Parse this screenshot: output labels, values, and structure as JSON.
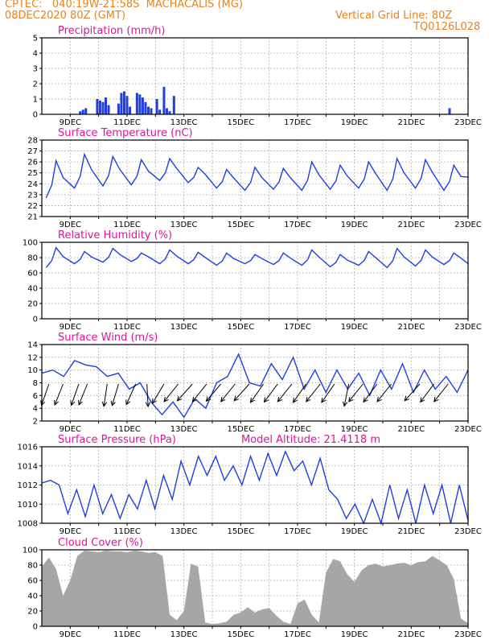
{
  "header": {
    "line1": "CPTEC:   040:19W-21:58S  MACHACALIS (MG)",
    "line2": "08DEC2020 80Z (GMT)",
    "grid_note": "Vertical Grid Line: 80Z",
    "code": "TQ0126L028"
  },
  "colors": {
    "line": "#1f3fe0",
    "title": "#e0139a",
    "header": "#e8821e",
    "cloud": "#a6a6a6",
    "arrow": "#000000"
  },
  "chart_data": [
    {
      "type": "bar",
      "title": "Precipitation (mm/h)",
      "x_ticks": [
        "9DEC",
        "11DEC",
        "13DEC",
        "15DEC",
        "17DEC",
        "19DEC",
        "21DEC",
        "23DEC"
      ],
      "x_range_days": [
        8.0,
        23.0
      ],
      "ylim": [
        0,
        5
      ],
      "y_ticks": [
        0,
        1,
        2,
        3,
        4,
        5
      ],
      "bars": [
        {
          "day": 9.35,
          "value": 0.2
        },
        {
          "day": 9.45,
          "value": 0.3
        },
        {
          "day": 9.55,
          "value": 0.4
        },
        {
          "day": 9.95,
          "value": 1.0
        },
        {
          "day": 10.05,
          "value": 0.9
        },
        {
          "day": 10.15,
          "value": 0.8
        },
        {
          "day": 10.25,
          "value": 1.1
        },
        {
          "day": 10.35,
          "value": 0.6
        },
        {
          "day": 10.7,
          "value": 0.7
        },
        {
          "day": 10.8,
          "value": 1.4
        },
        {
          "day": 10.9,
          "value": 1.5
        },
        {
          "day": 11.0,
          "value": 1.2
        },
        {
          "day": 11.1,
          "value": 0.5
        },
        {
          "day": 11.35,
          "value": 1.4
        },
        {
          "day": 11.45,
          "value": 1.3
        },
        {
          "day": 11.55,
          "value": 1.1
        },
        {
          "day": 11.65,
          "value": 0.8
        },
        {
          "day": 11.75,
          "value": 0.5
        },
        {
          "day": 11.85,
          "value": 0.4
        },
        {
          "day": 12.05,
          "value": 1.0
        },
        {
          "day": 12.15,
          "value": 0.3
        },
        {
          "day": 12.3,
          "value": 1.8
        },
        {
          "day": 12.4,
          "value": 0.4
        },
        {
          "day": 12.5,
          "value": 0.2
        },
        {
          "day": 12.65,
          "value": 1.2
        },
        {
          "day": 22.35,
          "value": 0.4
        }
      ]
    },
    {
      "type": "line",
      "title": "Surface Temperature (nC)",
      "x_ticks": [
        "9DEC",
        "11DEC",
        "13DEC",
        "15DEC",
        "17DEC",
        "19DEC",
        "21DEC",
        "23DEC"
      ],
      "ylim": [
        21,
        28
      ],
      "y_ticks": [
        21,
        22,
        23,
        24,
        25,
        26,
        27,
        28
      ],
      "minima": [
        22.7,
        23.6,
        23.8,
        23.9,
        24.3,
        24.1,
        23.6,
        23.4,
        23.5,
        23.4,
        23.5,
        23.6,
        23.4,
        23.6,
        23.4
      ],
      "maxima": [
        26.1,
        26.7,
        26.5,
        26.2,
        26.3,
        25.5,
        25.3,
        25.5,
        25.4,
        26.0,
        25.7,
        26.0,
        26.3,
        26.2,
        25.7
      ]
    },
    {
      "type": "line",
      "title": "Relative Humidity (%)",
      "x_ticks": [
        "9DEC",
        "11DEC",
        "13DEC",
        "15DEC",
        "17DEC",
        "19DEC",
        "21DEC",
        "23DEC"
      ],
      "ylim": [
        0,
        100
      ],
      "y_ticks": [
        0,
        20,
        40,
        60,
        80,
        100
      ],
      "minima": [
        67,
        72,
        74,
        75,
        72,
        72,
        70,
        72,
        71,
        70,
        68,
        70,
        67,
        69,
        71
      ],
      "maxima": [
        93,
        88,
        92,
        86,
        90,
        87,
        86,
        84,
        86,
        90,
        84,
        88,
        92,
        90,
        86
      ]
    },
    {
      "type": "line",
      "title": "Surface Wind (m/s)",
      "x_ticks": [
        "9DEC",
        "11DEC",
        "13DEC",
        "15DEC",
        "17DEC",
        "19DEC",
        "21DEC",
        "23DEC"
      ],
      "ylim": [
        2,
        14
      ],
      "y_ticks": [
        2,
        4,
        6,
        8,
        10,
        12,
        14
      ],
      "speed": [
        9.5,
        10,
        9,
        11.5,
        10.8,
        10.5,
        9,
        9.5,
        7,
        8,
        5,
        3,
        5,
        2.6,
        5.5,
        4,
        8,
        9,
        12.5,
        8,
        7.5,
        11,
        8.5,
        12,
        7,
        10,
        6.5,
        10,
        7,
        9.5,
        6,
        10,
        7,
        11,
        6.5,
        10,
        7,
        9,
        6.5,
        10
      ],
      "barbs": [
        {
          "day": 8.25,
          "u": -0.35,
          "v": -1
        },
        {
          "day": 8.75,
          "u": -0.4,
          "v": -1
        },
        {
          "day": 9.3,
          "u": -0.35,
          "v": -1
        },
        {
          "day": 9.6,
          "u": -0.4,
          "v": -1
        },
        {
          "day": 10.3,
          "u": -0.15,
          "v": -1
        },
        {
          "day": 10.7,
          "u": -0.3,
          "v": -1
        },
        {
          "day": 11.3,
          "u": -0.45,
          "v": -1
        },
        {
          "day": 11.7,
          "u": 0.05,
          "v": -1
        },
        {
          "day": 12.3,
          "u": -0.6,
          "v": -1
        },
        {
          "day": 12.8,
          "u": -0.8,
          "v": -1
        },
        {
          "day": 13.3,
          "u": -0.9,
          "v": -1
        },
        {
          "day": 13.8,
          "u": -0.8,
          "v": -1
        },
        {
          "day": 14.3,
          "u": -0.85,
          "v": -1
        },
        {
          "day": 14.8,
          "u": -0.8,
          "v": -1
        },
        {
          "day": 15.3,
          "u": -0.9,
          "v": -1
        },
        {
          "day": 15.8,
          "u": -0.7,
          "v": -1
        },
        {
          "day": 16.3,
          "u": -0.75,
          "v": -1
        },
        {
          "day": 16.8,
          "u": -0.8,
          "v": -1
        },
        {
          "day": 17.3,
          "u": -0.7,
          "v": -1
        },
        {
          "day": 17.8,
          "u": -0.8,
          "v": -1
        },
        {
          "day": 18.3,
          "u": -0.7,
          "v": -1
        },
        {
          "day": 18.8,
          "u": -0.2,
          "v": -1
        },
        {
          "day": 19.3,
          "u": -0.8,
          "v": -1
        },
        {
          "day": 19.8,
          "u": -0.75,
          "v": -1
        },
        {
          "day": 20.3,
          "u": -0.8,
          "v": -1
        },
        {
          "day": 21.3,
          "u": -0.9,
          "v": -1
        },
        {
          "day": 21.8,
          "u": -0.75,
          "v": -1
        },
        {
          "day": 22.3,
          "u": -0.8,
          "v": -1
        }
      ]
    },
    {
      "type": "line",
      "title": "Surface Pressure (hPa)",
      "subtitle": "Model Altitude: 21.4118 m",
      "x_ticks": [
        "9DEC",
        "11DEC",
        "13DEC",
        "15DEC",
        "17DEC",
        "19DEC",
        "21DEC",
        "23DEC"
      ],
      "ylim": [
        1008,
        1016
      ],
      "y_ticks": [
        1008,
        1010,
        1012,
        1014,
        1016
      ],
      "values": [
        1012.2,
        1012.5,
        1012,
        1009,
        1011.5,
        1008.7,
        1012,
        1009,
        1011,
        1008.5,
        1011,
        1009.5,
        1012.5,
        1009.5,
        1013,
        1010.5,
        1014.5,
        1012,
        1015,
        1013,
        1015,
        1012.5,
        1014,
        1012,
        1015,
        1012.5,
        1015.3,
        1013,
        1015.5,
        1013.5,
        1014.5,
        1012,
        1014.8,
        1011.5,
        1010.5,
        1008.5,
        1010,
        1007.8,
        1010.5,
        1007.5,
        1012,
        1008.5,
        1011.5,
        1008,
        1012,
        1009,
        1012,
        1007.8,
        1012,
        1008.3
      ]
    },
    {
      "type": "area",
      "title": "Cloud Cover (%)",
      "x_ticks": [
        "9DEC",
        "11DEC",
        "13DEC",
        "15DEC",
        "17DEC",
        "19DEC",
        "21DEC",
        "23DEC"
      ],
      "ylim": [
        0,
        100
      ],
      "y_ticks": [
        0,
        20,
        40,
        60,
        80,
        100
      ],
      "values": [
        78,
        90,
        75,
        40,
        60,
        92,
        99,
        98,
        97,
        99,
        98,
        98,
        97,
        99,
        98,
        96,
        97,
        92,
        15,
        8,
        20,
        82,
        78,
        5,
        3,
        4,
        6,
        15,
        18,
        25,
        18,
        22,
        24,
        14,
        6,
        3,
        30,
        35,
        15,
        5,
        70,
        88,
        85,
        68,
        58,
        73,
        80,
        82,
        78,
        80,
        82,
        83,
        80,
        84,
        85,
        92,
        86,
        80,
        62,
        10,
        4
      ]
    }
  ]
}
